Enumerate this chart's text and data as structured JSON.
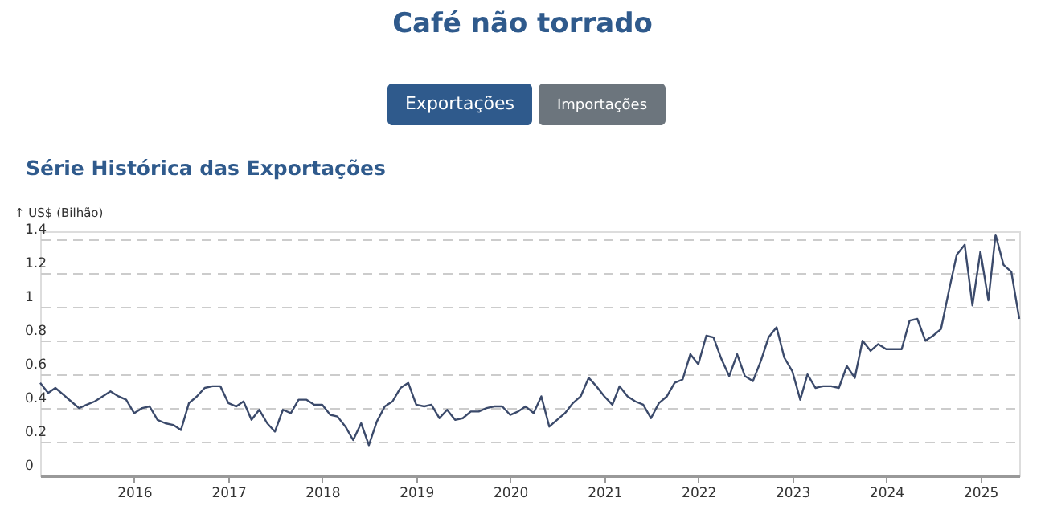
{
  "chart_data": {
    "type": "line",
    "title": "Café não torrado",
    "subtitle": "Série Histórica das Exportações",
    "ylabel": "↑ US$ (Bilhão)",
    "annotations": [
      "Exportações",
      "Importações"
    ],
    "x": [
      "2015-01",
      "2015-02",
      "2015-03",
      "2015-04",
      "2015-05",
      "2015-06",
      "2015-07",
      "2015-08",
      "2015-09",
      "2015-10",
      "2015-11",
      "2015-12",
      "2016-01",
      "2016-02",
      "2016-03",
      "2016-04",
      "2016-05",
      "2016-06",
      "2016-07",
      "2016-08",
      "2016-09",
      "2016-10",
      "2016-11",
      "2016-12",
      "2017-01",
      "2017-02",
      "2017-03",
      "2017-04",
      "2017-05",
      "2017-06",
      "2017-07",
      "2017-08",
      "2017-09",
      "2017-10",
      "2017-11",
      "2017-12",
      "2018-01",
      "2018-02",
      "2018-03",
      "2018-04",
      "2018-05",
      "2018-06",
      "2018-07",
      "2018-08",
      "2018-09",
      "2018-10",
      "2018-11",
      "2018-12",
      "2019-01",
      "2019-02",
      "2019-03",
      "2019-04",
      "2019-05",
      "2019-06",
      "2019-07",
      "2019-08",
      "2019-09",
      "2019-10",
      "2019-11",
      "2019-12",
      "2020-01",
      "2020-02",
      "2020-03",
      "2020-04",
      "2020-05",
      "2020-06",
      "2020-07",
      "2020-08",
      "2020-09",
      "2020-10",
      "2020-11",
      "2020-12",
      "2021-01",
      "2021-02",
      "2021-03",
      "2021-04",
      "2021-05",
      "2021-06",
      "2021-07",
      "2021-08",
      "2021-09",
      "2021-10",
      "2021-11",
      "2021-12",
      "2022-01",
      "2022-02",
      "2022-03",
      "2022-04",
      "2022-05",
      "2022-06",
      "2022-07",
      "2022-08",
      "2022-09",
      "2022-10",
      "2022-11",
      "2022-12",
      "2023-01",
      "2023-02",
      "2023-03",
      "2023-04",
      "2023-05",
      "2023-06",
      "2023-07",
      "2023-08",
      "2023-09",
      "2023-10",
      "2023-11",
      "2023-12",
      "2024-01",
      "2024-02",
      "2024-03",
      "2024-04",
      "2024-05",
      "2024-06",
      "2024-07",
      "2024-08",
      "2024-09",
      "2024-10",
      "2024-11",
      "2024-12",
      "2025-01",
      "2025-02",
      "2025-03",
      "2025-04",
      "2025-05",
      "2025-06"
    ],
    "series": [
      {
        "color": "#3b4a6b",
        "values": [
          0.55,
          0.49,
          0.52,
          0.48,
          0.44,
          0.4,
          0.42,
          0.44,
          0.47,
          0.5,
          0.47,
          0.45,
          0.37,
          0.4,
          0.41,
          0.33,
          0.31,
          0.3,
          0.27,
          0.43,
          0.47,
          0.52,
          0.53,
          0.53,
          0.43,
          0.41,
          0.44,
          0.33,
          0.39,
          0.31,
          0.26,
          0.39,
          0.37,
          0.45,
          0.45,
          0.42,
          0.42,
          0.36,
          0.35,
          0.29,
          0.21,
          0.31,
          0.18,
          0.32,
          0.41,
          0.44,
          0.52,
          0.55,
          0.42,
          0.41,
          0.42,
          0.34,
          0.39,
          0.33,
          0.34,
          0.38,
          0.38,
          0.4,
          0.41,
          0.41,
          0.36,
          0.38,
          0.41,
          0.37,
          0.47,
          0.29,
          0.33,
          0.37,
          0.43,
          0.47,
          0.58,
          0.53,
          0.47,
          0.42,
          0.53,
          0.47,
          0.44,
          0.42,
          0.34,
          0.43,
          0.47,
          0.55,
          0.57,
          0.72,
          0.66,
          0.83,
          0.82,
          0.69,
          0.59,
          0.72,
          0.59,
          0.56,
          0.68,
          0.82,
          0.88,
          0.7,
          0.62,
          0.45,
          0.6,
          0.52,
          0.53,
          0.53,
          0.52,
          0.65,
          0.58,
          0.8,
          0.74,
          0.78,
          0.75,
          0.75,
          0.75,
          0.92,
          0.93,
          0.8,
          0.83,
          0.87,
          1.1,
          1.31,
          1.37,
          1.01,
          1.33,
          1.04,
          1.43,
          1.25,
          1.21,
          0.93
        ]
      }
    ],
    "xlim": [
      "2015-01",
      "2025-06"
    ],
    "xticks": [
      "2016",
      "2017",
      "2018",
      "2019",
      "2020",
      "2021",
      "2022",
      "2023",
      "2024",
      "2025"
    ],
    "ylim": [
      0,
      1.45
    ],
    "yticks": [
      0,
      0.2,
      0.4,
      0.6,
      0.8,
      1,
      1.2,
      1.4
    ],
    "grid": "y",
    "line_style": "solid",
    "marker": "none"
  }
}
